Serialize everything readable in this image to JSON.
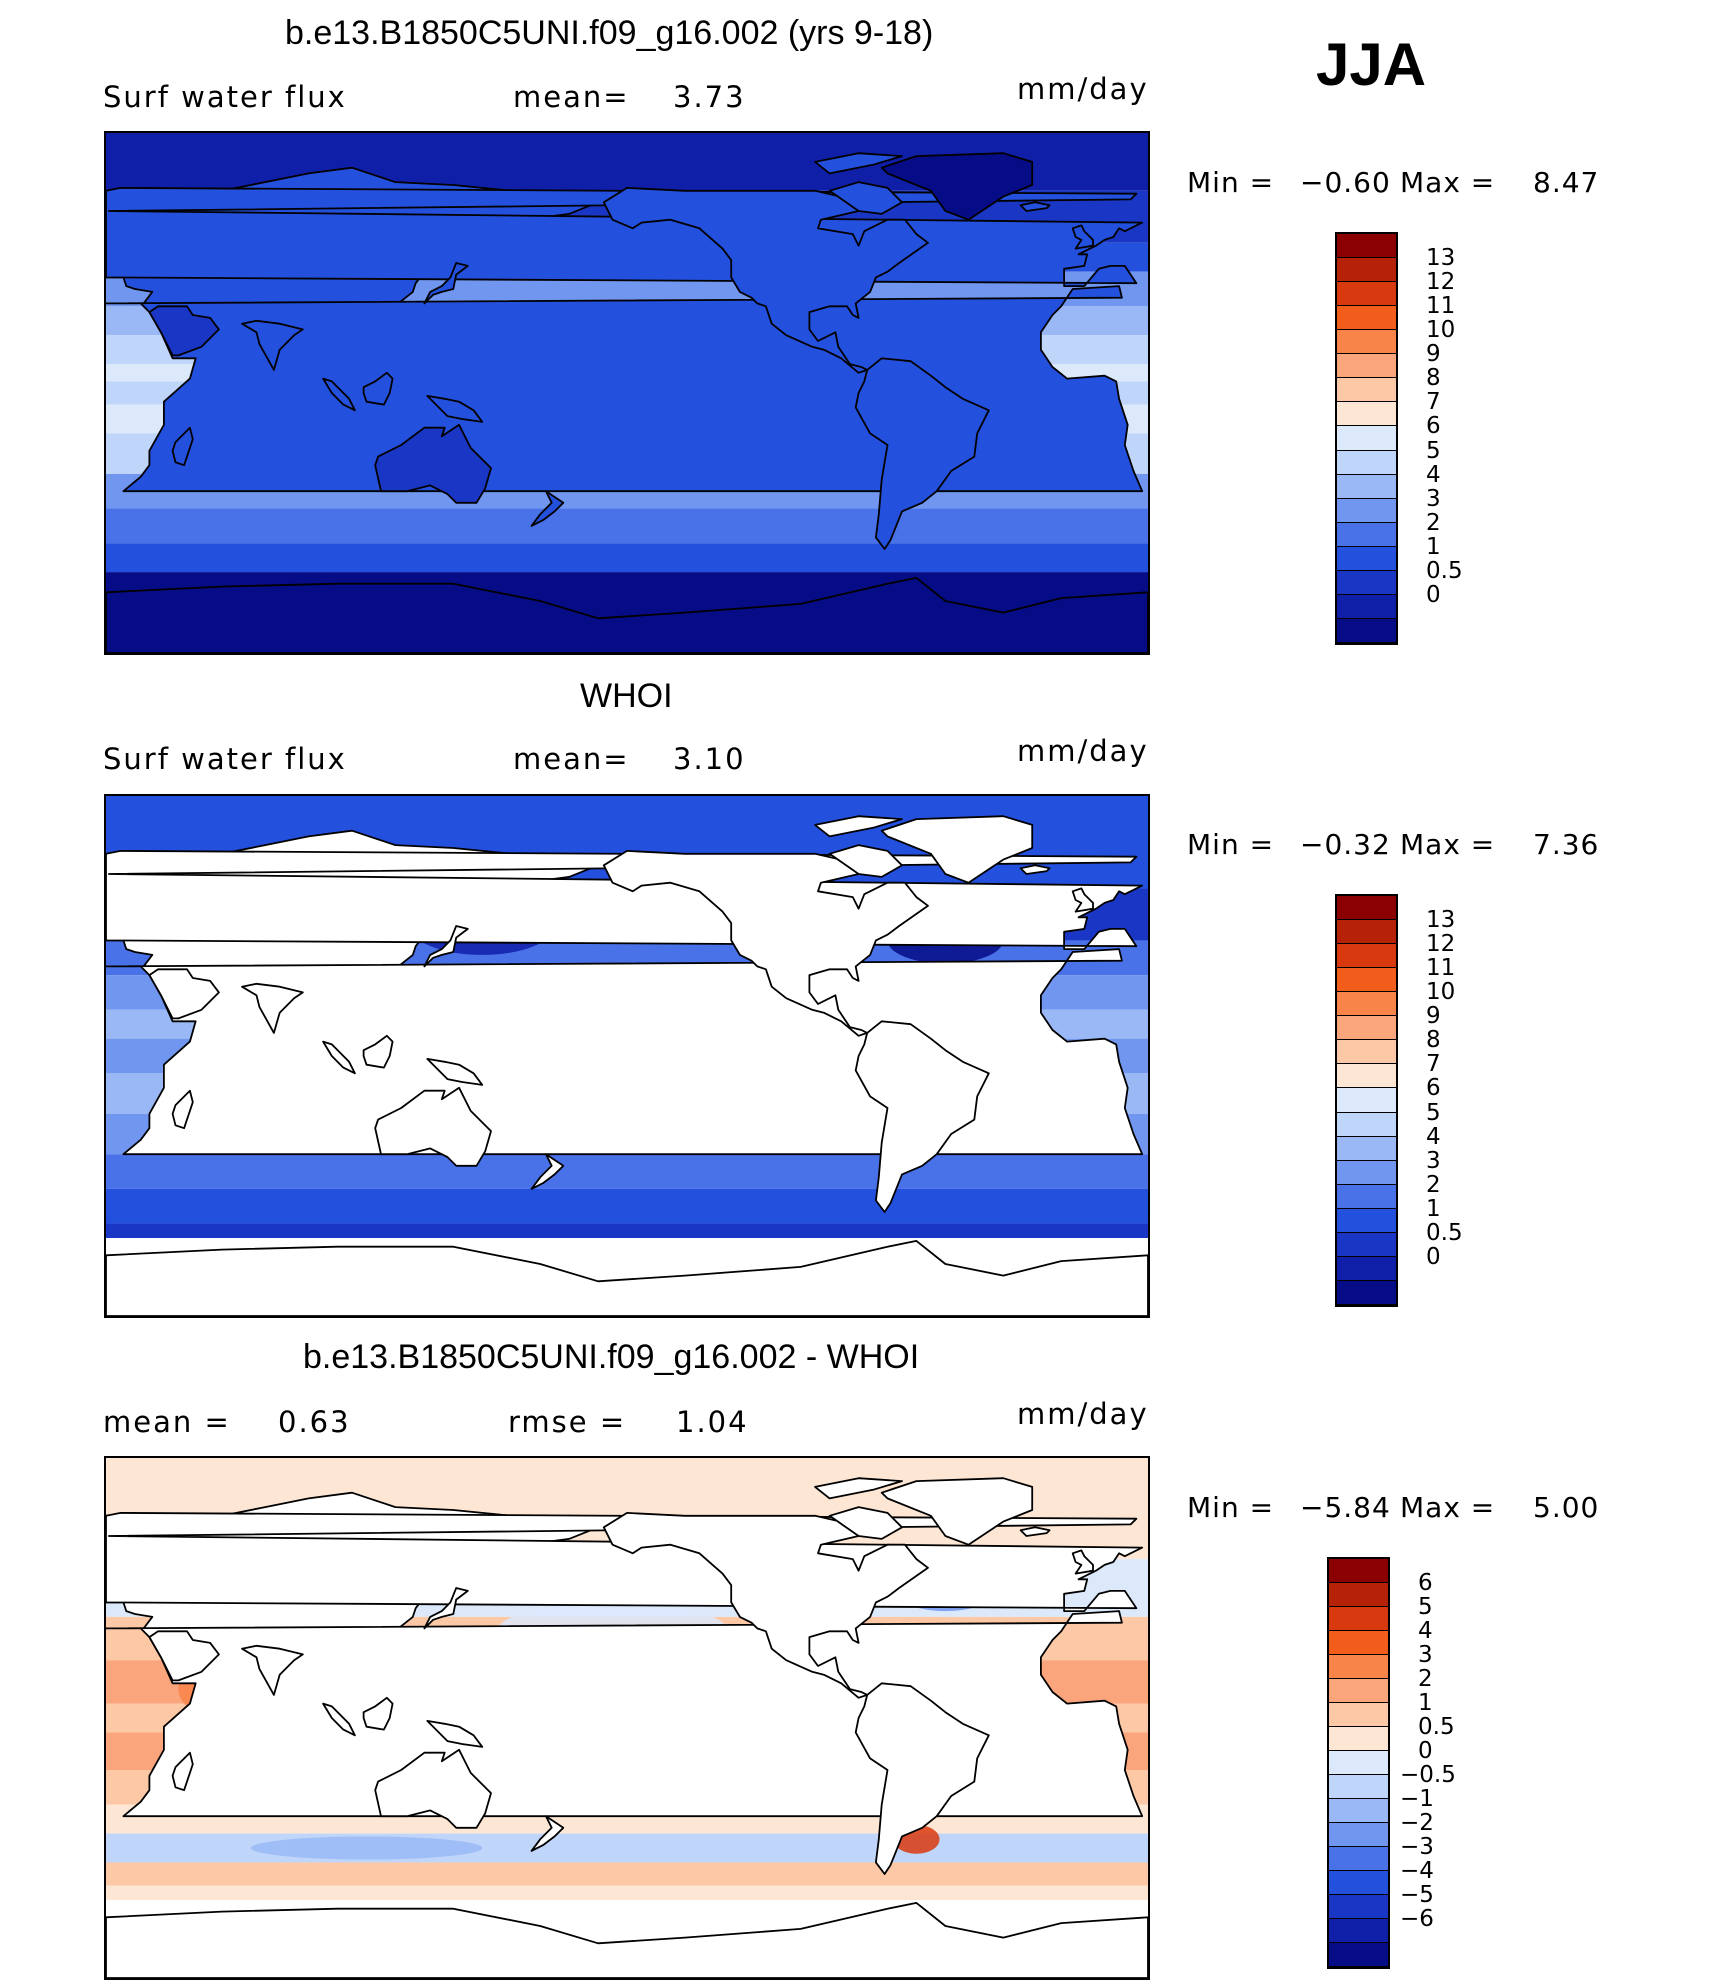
{
  "season": "JJA",
  "panels": [
    {
      "title": "b.e13.B1850C5UNI.f09_g16.002 (yrs 9-18)",
      "left_label": "Surf  water  flux",
      "mid_label": "mean=",
      "mid_value": "3.73",
      "units": "mm/day",
      "min_label": "Min  =",
      "min_value": "−0.60",
      "max_label": "Max  =",
      "max_value": "8.47",
      "colorbar": {
        "colors": [
          "#8b0000",
          "#b52208",
          "#d9390e",
          "#f35d1b",
          "#f8844a",
          "#fba57c",
          "#fdc8a6",
          "#fee6d4",
          "#dce9fb",
          "#bfd5fa",
          "#99b8f5",
          "#7196f0",
          "#4a72e8",
          "#2450de",
          "#1a36c4",
          "#0f1fa8",
          "#050c86"
        ],
        "labels": [
          "13",
          "12",
          "11",
          "10",
          "9",
          "8",
          "7",
          "6",
          "5",
          "4",
          "3",
          "2",
          "1",
          "0.5",
          "0"
        ]
      },
      "map_style": "model"
    },
    {
      "title": "WHOI",
      "left_label": "Surf  water  flux",
      "mid_label": "mean=",
      "mid_value": "3.10",
      "units": "mm/day",
      "min_label": "Min  =",
      "min_value": "−0.32",
      "max_label": "Max  =",
      "max_value": "7.36",
      "colorbar": {
        "colors": [
          "#8b0000",
          "#b52208",
          "#d9390e",
          "#f35d1b",
          "#f8844a",
          "#fba57c",
          "#fdc8a6",
          "#fee6d4",
          "#dce9fb",
          "#bfd5fa",
          "#99b8f5",
          "#7196f0",
          "#4a72e8",
          "#2450de",
          "#1a36c4",
          "#0f1fa8",
          "#050c86"
        ],
        "labels": [
          "13",
          "12",
          "11",
          "10",
          "9",
          "8",
          "7",
          "6",
          "5",
          "4",
          "3",
          "2",
          "1",
          "0.5",
          "0"
        ]
      },
      "map_style": "obs"
    },
    {
      "title": "b.e13.B1850C5UNI.f09_g16.002 - WHOI",
      "left_label": "mean  =",
      "left_value": "0.63",
      "mid_label": "rmse  =",
      "mid_value": "1.04",
      "units": "mm/day",
      "min_label": "Min  =",
      "min_value": "−5.84",
      "max_label": "Max  =",
      "max_value": "5.00",
      "colorbar": {
        "colors": [
          "#8b0000",
          "#b52208",
          "#d9390e",
          "#f35d1b",
          "#f8844a",
          "#fba57c",
          "#fdc8a6",
          "#fee6d4",
          "#dce9fb",
          "#bfd5fa",
          "#99b8f5",
          "#7196f0",
          "#4a72e8",
          "#2450de",
          "#1a36c4",
          "#0f1fa8",
          "#050c86"
        ],
        "labels": [
          "6",
          "5",
          "4",
          "3",
          "2",
          "1",
          "0.5",
          "0",
          "−0.5",
          "−1",
          "−2",
          "−3",
          "−4",
          "−5",
          "−6"
        ]
      },
      "map_style": "diff"
    }
  ]
}
